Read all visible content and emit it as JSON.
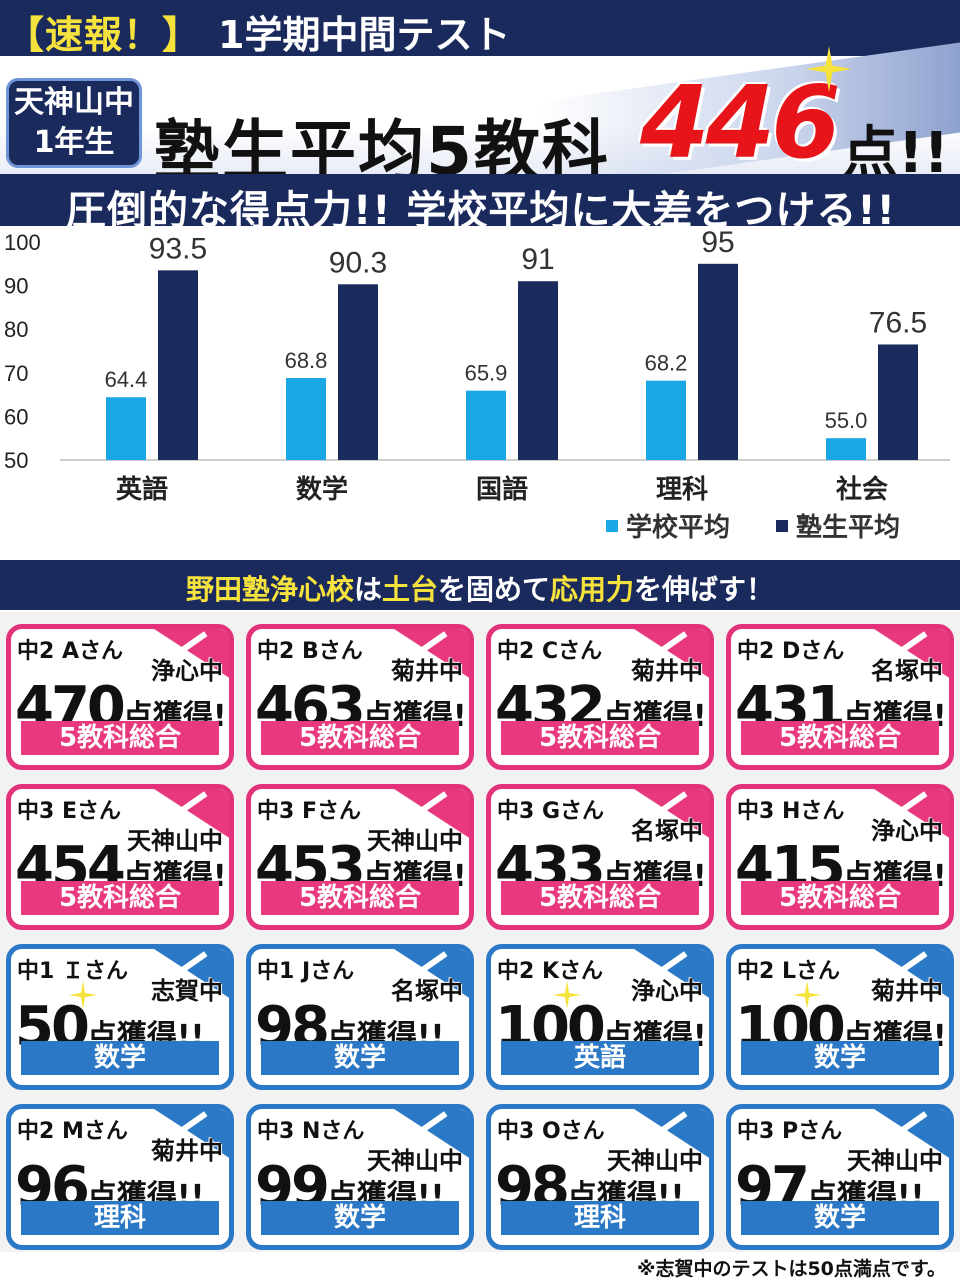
{
  "header": {
    "flash": "【速報！】",
    "title": "1学期中間テスト"
  },
  "headline": {
    "school_line1": "天神山中",
    "school_line2": "1年生",
    "main": "塾生平均5教科",
    "score": "446",
    "unit": "点!!"
  },
  "subheadline": "圧倒的な得点力!!  学校平均に大差をつける!!",
  "colors": {
    "navy": "#1b2a5c",
    "school_bar": "#1aa7e6",
    "juku_bar": "#1b2a5c",
    "pink": "#e8397e",
    "blue": "#2a78c6",
    "red": "#e7141a",
    "yellow": "#f6e23c"
  },
  "chart_data": {
    "type": "bar",
    "categories": [
      "英語",
      "数学",
      "国語",
      "理科",
      "社会"
    ],
    "series": [
      {
        "name": "学校平均",
        "values": [
          64.4,
          68.8,
          65.9,
          68.2,
          55.0
        ],
        "labels": [
          "64.4",
          "68.8",
          "65.9",
          "68.2",
          "55.0"
        ]
      },
      {
        "name": "塾生平均",
        "values": [
          93.5,
          90.3,
          91,
          95,
          76.5
        ],
        "labels": [
          "93.5",
          "90.3",
          "91",
          "95",
          "76.5"
        ]
      }
    ],
    "ylim": [
      50,
      100
    ],
    "yticks": [
      "100",
      "90",
      "80",
      "70",
      "60",
      "50"
    ],
    "legend": "bottom-right",
    "grid": false
  },
  "slogan": {
    "part1": "野田塾浄心校",
    "part2": "は",
    "part3": "土台",
    "part4": "を固めて",
    "part5": "応用力",
    "part6": "を伸ばす！"
  },
  "cards": [
    {
      "grade": "中2 Aさん",
      "school": "浄心中",
      "score": "470",
      "unit": "点獲得!!",
      "subject": "5教科総合",
      "style": "pink",
      "school_pos": "hi"
    },
    {
      "grade": "中2 Bさん",
      "school": "菊井中",
      "score": "463",
      "unit": "点獲得!!",
      "subject": "5教科総合",
      "style": "pink",
      "school_pos": "hi"
    },
    {
      "grade": "中2 Cさん",
      "school": "菊井中",
      "score": "432",
      "unit": "点獲得!!",
      "subject": "5教科総合",
      "style": "pink",
      "school_pos": "hi"
    },
    {
      "grade": "中2 Dさん",
      "school": "名塚中",
      "score": "431",
      "unit": "点獲得!!",
      "subject": "5教科総合",
      "style": "pink",
      "school_pos": "hi"
    },
    {
      "grade": "中3 Eさん",
      "school": "天神山中",
      "score": "454",
      "unit": "点獲得!!",
      "subject": "5教科総合",
      "style": "pink",
      "school_pos": "lo"
    },
    {
      "grade": "中3 Fさん",
      "school": "天神山中",
      "score": "453",
      "unit": "点獲得!!",
      "subject": "5教科総合",
      "style": "pink",
      "school_pos": "lo"
    },
    {
      "grade": "中3 Gさん",
      "school": "名塚中",
      "score": "433",
      "unit": "点獲得!!",
      "subject": "5教科総合",
      "style": "pink",
      "school_pos": "hi"
    },
    {
      "grade": "中3 Hさん",
      "school": "浄心中",
      "score": "415",
      "unit": "点獲得!!",
      "subject": "5教科総合",
      "style": "pink",
      "school_pos": "hi"
    },
    {
      "grade": "中1 Ｉさん",
      "school": "志賀中",
      "score": "50",
      "unit": "点獲得!!",
      "subject": "数学",
      "style": "blue",
      "school_pos": "hi",
      "sparkle": true
    },
    {
      "grade": "中1 Jさん",
      "school": "名塚中",
      "score": "98",
      "unit": "点獲得!!",
      "subject": "数学",
      "style": "blue",
      "school_pos": "hi"
    },
    {
      "grade": "中2 Kさん",
      "school": "浄心中",
      "score": "100",
      "unit": "点獲得!!",
      "subject": "英語",
      "style": "blue",
      "school_pos": "hi",
      "sparkle": true
    },
    {
      "grade": "中2 Lさん",
      "school": "菊井中",
      "score": "100",
      "unit": "点獲得!!",
      "subject": "数学",
      "style": "blue",
      "school_pos": "hi",
      "sparkle": true
    },
    {
      "grade": "中2 Mさん",
      "school": "菊井中",
      "score": "96",
      "unit": "点獲得!!",
      "subject": "理科",
      "style": "blue",
      "school_pos": "hi"
    },
    {
      "grade": "中3 Nさん",
      "school": "天神山中",
      "score": "99",
      "unit": "点獲得!!",
      "subject": "数学",
      "style": "blue",
      "school_pos": "lo"
    },
    {
      "grade": "中3 Oさん",
      "school": "天神山中",
      "score": "98",
      "unit": "点獲得!!",
      "subject": "理科",
      "style": "blue",
      "school_pos": "lo"
    },
    {
      "grade": "中3 Pさん",
      "school": "天神山中",
      "score": "97",
      "unit": "点獲得!!",
      "subject": "数学",
      "style": "blue",
      "school_pos": "lo"
    }
  ],
  "footnote": "※志賀中のテストは50点満点です。"
}
